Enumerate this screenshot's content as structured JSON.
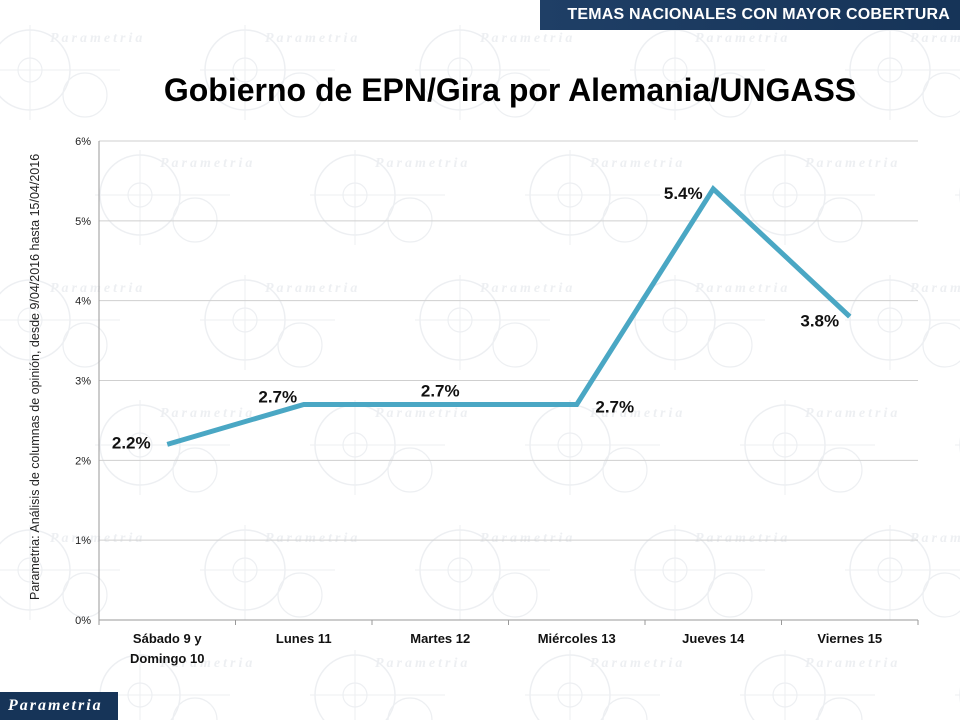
{
  "header": {
    "banner_text": "TEMAS NACIONALES CON MAYOR COBERTURA"
  },
  "watermark": {
    "text": "Parametria"
  },
  "logo": {
    "text": "Parametria"
  },
  "source_note": "Parametria: Análisis de columnas de opinión, desde 9/04/2016 hasta 15/04/2016",
  "colors": {
    "line": "#4aa7c4",
    "header": "#1f3f66",
    "grid": "#d0d0d0"
  },
  "chart_data": {
    "type": "line",
    "title": "Gobierno de EPN/Gira por Alemania/UNGASS",
    "categories": [
      [
        "Sábado 9 y",
        "Domingo 10"
      ],
      [
        "Lunes 11"
      ],
      [
        "Martes 12"
      ],
      [
        "Miércoles 13"
      ],
      [
        "Jueves 14"
      ],
      [
        "Viernes 15"
      ]
    ],
    "values": [
      2.2,
      2.7,
      2.7,
      2.7,
      5.4,
      3.8
    ],
    "data_labels": [
      "2.2%",
      "2.7%",
      "2.7%",
      "2.7%",
      "5.4%",
      "3.8%"
    ],
    "yticks": [
      "0%",
      "1%",
      "2%",
      "3%",
      "4%",
      "5%",
      "6%"
    ],
    "ylim": [
      0,
      6
    ],
    "grid": true,
    "legend": false
  }
}
